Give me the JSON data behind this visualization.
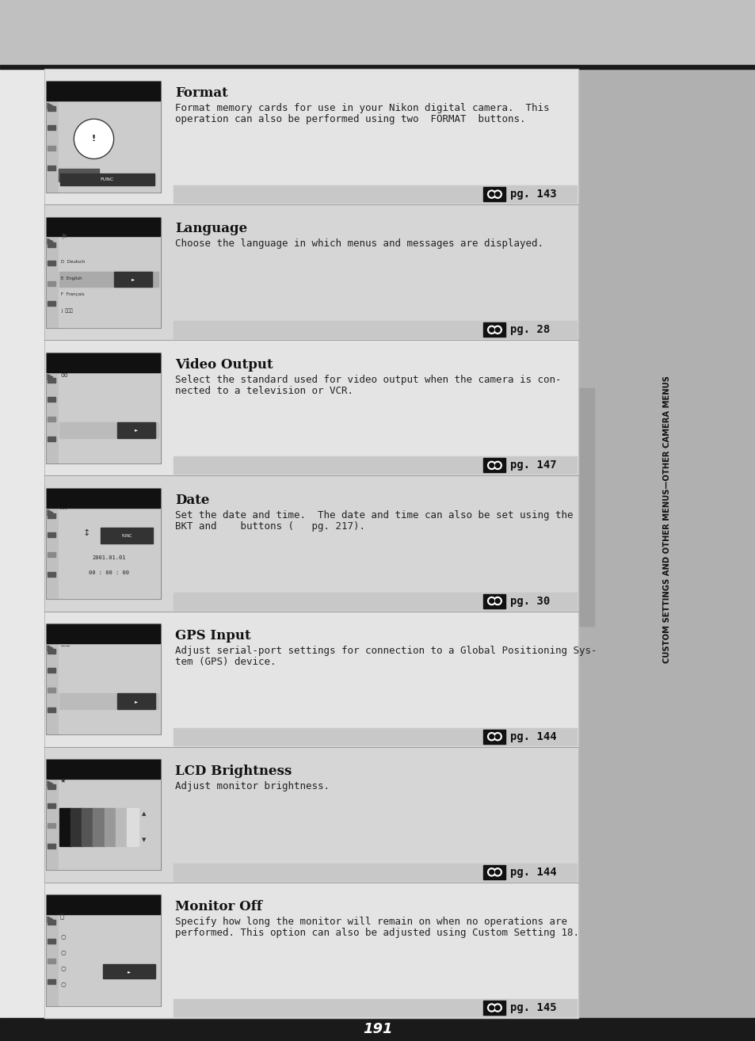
{
  "bg_color": "#c0c0c0",
  "top_bar_color": "#c0c0c0",
  "black_line_color": "#1a1a1a",
  "bottom_bar_color": "#1a1a1a",
  "content_bg": "#ffffff",
  "row_colors": [
    "#e8e8e8",
    "#d8d8d8"
  ],
  "sidebar_bg": "#b0b0b0",
  "sidebar_text_color": "#ffffff",
  "sidebar_text": "CUSTOM SETTINGS AND OTHER MENUS—OTHER CAMERA MENUS",
  "page_number": "191",
  "sections": [
    {
      "title": "Format",
      "body_lines": [
        "Format memory cards for use in your Nikon digital camera.  This",
        "operation can also be performed using two  FORMAT  buttons."
      ],
      "page_ref": "pg. 143",
      "screen_type": "format"
    },
    {
      "title": "Language",
      "body_lines": [
        "Choose the language in which menus and messages are displayed."
      ],
      "page_ref": "pg. 28",
      "screen_type": "language"
    },
    {
      "title": "Video Output",
      "body_lines": [
        "Select the standard used for video output when the camera is con-",
        "nected to a television or VCR."
      ],
      "page_ref": "pg. 147",
      "screen_type": "video"
    },
    {
      "title": "Date",
      "body_lines": [
        "Set the date and time.  The date and time can also be set using the",
        "BKT and    buttons (   pg. 217)."
      ],
      "page_ref": "pg. 30",
      "screen_type": "date"
    },
    {
      "title": "GPS Input",
      "body_lines": [
        "Adjust serial-port settings for connection to a Global Positioning Sys-",
        "tem (GPS) device."
      ],
      "page_ref": "pg. 144",
      "screen_type": "gps"
    },
    {
      "title": "LCD Brightness",
      "body_lines": [
        "Adjust monitor brightness."
      ],
      "page_ref": "pg. 144",
      "screen_type": "lcd"
    },
    {
      "title": "Monitor Off",
      "body_lines": [
        "Specify how long the monitor will remain on when no operations are",
        "performed. This option can also be adjusted using Custom Setting 18."
      ],
      "page_ref": "pg. 145",
      "screen_type": "monitor"
    }
  ]
}
